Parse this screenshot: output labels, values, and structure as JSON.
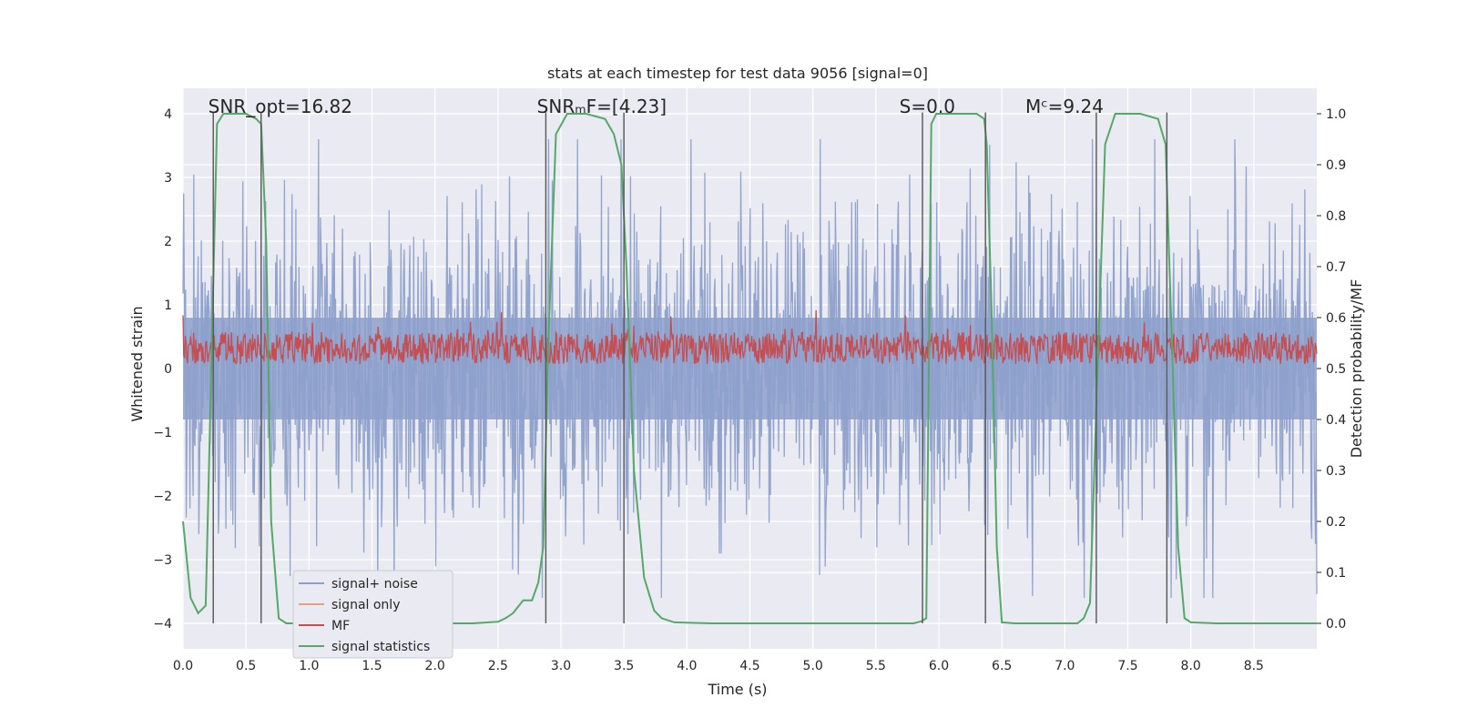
{
  "chart_data": {
    "type": "line",
    "title": "stats at each timestep for test data 9056 [signal=0]",
    "xlabel": "Time (s)",
    "ylabel": "Whitened strain",
    "y2label": "Detection probability/MF",
    "xlim": [
      0,
      9.0
    ],
    "ylim": [
      -4.4,
      4.4
    ],
    "y2lim": [
      -0.05,
      1.05
    ],
    "xticks": [
      0,
      0.5,
      1.0,
      1.5,
      2.0,
      2.5,
      3.0,
      3.5,
      4.0,
      4.5,
      5.0,
      5.5,
      6.0,
      6.5,
      7.0,
      7.5,
      8.0,
      8.5
    ],
    "xtick_labels": [
      "0.0",
      "0.5",
      "1.0",
      "1.5",
      "2.0",
      "2.5",
      "3.0",
      "3.5",
      "4.0",
      "4.5",
      "5.0",
      "5.5",
      "6.0",
      "6.5",
      "7.0",
      "7.5",
      "8.0",
      "8.5"
    ],
    "yticks": [
      -4,
      -3,
      -2,
      -1,
      0,
      1,
      2,
      3,
      4
    ],
    "ytick_labels": [
      "−4",
      "−3",
      "−2",
      "−1",
      "0",
      "1",
      "2",
      "3",
      "4"
    ],
    "y2ticks": [
      0.0,
      0.1,
      0.2,
      0.3,
      0.4,
      0.5,
      0.6,
      0.7,
      0.8,
      0.9,
      1.0
    ],
    "y2tick_labels": [
      "0.0",
      "0.1",
      "0.2",
      "0.3",
      "0.4",
      "0.5",
      "0.6",
      "0.7",
      "0.8",
      "0.9",
      "1.0"
    ],
    "annotations": [
      {
        "x": 0.2,
        "text": "SNR_opt=16.82"
      },
      {
        "x": 2.6,
        "text": "SNRₘF=[4.23]"
      },
      {
        "x": 5.6,
        "text": "S=0.0"
      },
      {
        "x": 6.6,
        "text": "Mᶜ=9.24"
      }
    ],
    "vlines": [
      0.24,
      0.62,
      2.88,
      3.5,
      5.87,
      6.37,
      7.25,
      7.81
    ],
    "legend": {
      "location": "lower-left",
      "entries": [
        {
          "label": "signal+ noise",
          "color": "#8da0cb"
        },
        {
          "label": "signal only",
          "color": "#e8a07e"
        },
        {
          "label": "MF",
          "color": "#c44e52"
        },
        {
          "label": "signal statistics",
          "color": "#55a868"
        }
      ]
    },
    "series": [
      {
        "name": "signal+ noise",
        "axis": "left",
        "style": "noise",
        "seed": 9056,
        "amplitude": 1.6,
        "peak": 3.6
      },
      {
        "name": "signal only",
        "axis": "left",
        "style": "flat",
        "values": []
      },
      {
        "name": "MF",
        "axis": "left",
        "style": "noise",
        "seed": 4231,
        "center": 0.32,
        "amplitude": 0.25,
        "peak": 0.95
      },
      {
        "name": "signal statistics",
        "axis": "right",
        "x": [
          0.0,
          0.06,
          0.12,
          0.18,
          0.22,
          0.27,
          0.32,
          0.4,
          0.5,
          0.58,
          0.62,
          0.66,
          0.7,
          0.76,
          0.82,
          1.0,
          2.0,
          2.3,
          2.5,
          2.56,
          2.62,
          2.7,
          2.77,
          2.82,
          2.86,
          2.9,
          2.96,
          3.05,
          3.2,
          3.35,
          3.42,
          3.48,
          3.52,
          3.58,
          3.66,
          3.74,
          3.8,
          3.9,
          4.2,
          5.8,
          5.86,
          5.9,
          5.94,
          5.98,
          6.1,
          6.3,
          6.36,
          6.38,
          6.42,
          6.46,
          6.5,
          6.6,
          7.1,
          7.15,
          7.2,
          7.26,
          7.32,
          7.4,
          7.6,
          7.74,
          7.8,
          7.85,
          7.9,
          7.95,
          8.0,
          8.2,
          9.0
        ],
        "values": [
          0.2,
          0.05,
          0.02,
          0.035,
          0.45,
          0.98,
          1.0,
          1.0,
          1.0,
          0.99,
          0.98,
          0.75,
          0.2,
          0.01,
          0.0,
          0.0,
          0.0,
          0.0,
          0.003,
          0.01,
          0.02,
          0.045,
          0.045,
          0.08,
          0.15,
          0.55,
          0.96,
          1.0,
          1.0,
          0.99,
          0.96,
          0.9,
          0.7,
          0.3,
          0.09,
          0.025,
          0.01,
          0.002,
          0.0,
          0.0,
          0.004,
          0.01,
          0.98,
          1.0,
          1.0,
          1.0,
          0.99,
          0.94,
          0.6,
          0.15,
          0.002,
          0.0,
          0.0,
          0.01,
          0.04,
          0.5,
          0.94,
          1.0,
          1.0,
          0.99,
          0.94,
          0.55,
          0.15,
          0.01,
          0.002,
          0.0,
          0.0
        ]
      }
    ]
  }
}
